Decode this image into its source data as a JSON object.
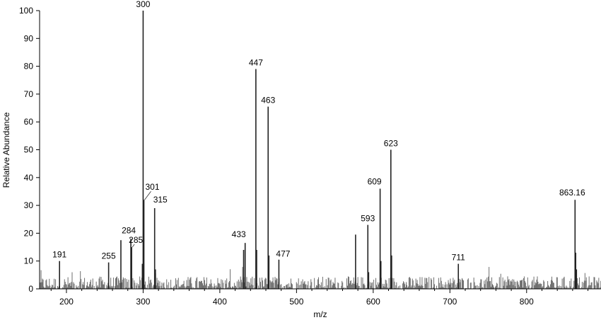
{
  "chart_data": {
    "type": "bar",
    "title": "",
    "xlabel": "m/z",
    "ylabel": "Relative Abundance",
    "xlim": [
      165,
      897
    ],
    "ylim": [
      0,
      100
    ],
    "x_ticks": [
      200,
      300,
      400,
      500,
      600,
      700,
      800
    ],
    "y_ticks": [
      0,
      10,
      20,
      30,
      40,
      50,
      60,
      70,
      80,
      90,
      100
    ],
    "grid": false,
    "labeled_peaks": [
      {
        "mz": 191,
        "abundance": 10.0,
        "label": "191"
      },
      {
        "mz": 255,
        "abundance": 9.5,
        "label": "255"
      },
      {
        "mz": 271,
        "abundance": 17.5,
        "label": ""
      },
      {
        "mz": 284,
        "abundance": 18.0,
        "label": "284"
      },
      {
        "mz": 285,
        "abundance": 15.0,
        "label": "285"
      },
      {
        "mz": 299,
        "abundance": 9.0,
        "label": ""
      },
      {
        "mz": 300,
        "abundance": 100.0,
        "label": "300"
      },
      {
        "mz": 301,
        "abundance": 32.0,
        "label": "301"
      },
      {
        "mz": 315,
        "abundance": 29.0,
        "label": "315"
      },
      {
        "mz": 316,
        "abundance": 7.0,
        "label": ""
      },
      {
        "mz": 431,
        "abundance": 14.0,
        "label": ""
      },
      {
        "mz": 433,
        "abundance": 16.5,
        "label": "433"
      },
      {
        "mz": 447,
        "abundance": 79.0,
        "label": "447"
      },
      {
        "mz": 448,
        "abundance": 14.0,
        "label": ""
      },
      {
        "mz": 463,
        "abundance": 65.5,
        "label": "463"
      },
      {
        "mz": 464,
        "abundance": 12.0,
        "label": ""
      },
      {
        "mz": 477,
        "abundance": 10.5,
        "label": "477"
      },
      {
        "mz": 577,
        "abundance": 19.5,
        "label": ""
      },
      {
        "mz": 593,
        "abundance": 23.0,
        "label": "593"
      },
      {
        "mz": 594,
        "abundance": 6.0,
        "label": ""
      },
      {
        "mz": 609,
        "abundance": 36.0,
        "label": "609"
      },
      {
        "mz": 610,
        "abundance": 10.0,
        "label": ""
      },
      {
        "mz": 623,
        "abundance": 50.0,
        "label": "623"
      },
      {
        "mz": 624,
        "abundance": 12.0,
        "label": ""
      },
      {
        "mz": 711,
        "abundance": 9.0,
        "label": "711"
      },
      {
        "mz": 863.16,
        "abundance": 32.0,
        "label": "863.16"
      },
      {
        "mz": 864,
        "abundance": 13.0,
        "label": ""
      },
      {
        "mz": 865,
        "abundance": 7.0,
        "label": ""
      }
    ],
    "baseline_noise_max": 4.5
  }
}
